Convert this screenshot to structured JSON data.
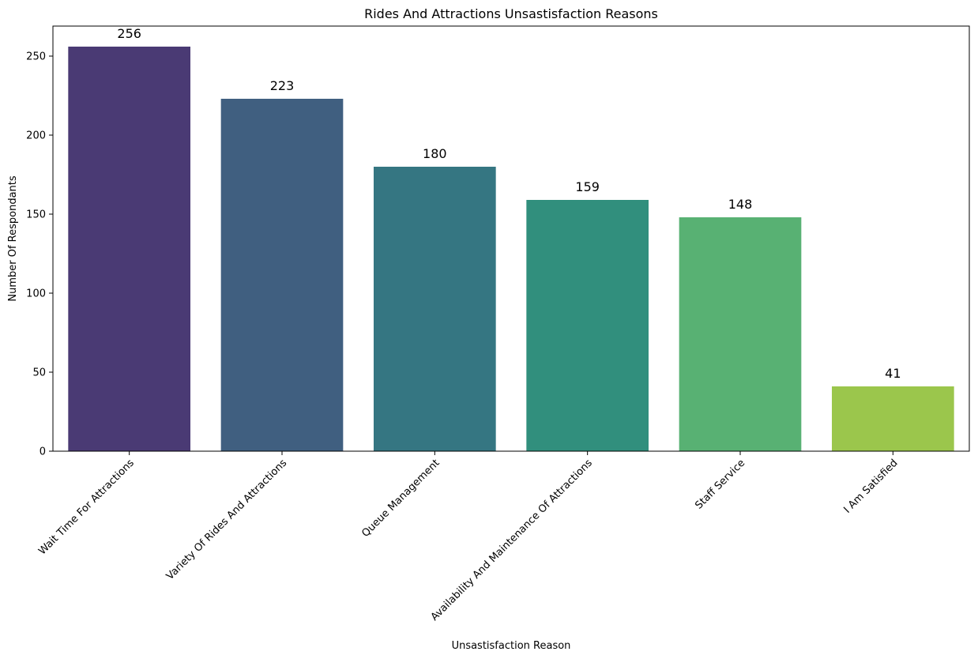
{
  "chart_data": {
    "type": "bar",
    "title": "Rides And Attractions Unsastisfaction Reasons",
    "xlabel": "Unsastisfaction Reason",
    "ylabel": "Number Of Respondants",
    "categories": [
      "Wait Time For Attractions",
      "Variety Of Rides And Attractions",
      "Queue Management",
      "Availability And Maintenance Of Attractions",
      "Staff Service",
      "I Am Satisfied"
    ],
    "values": [
      256,
      223,
      180,
      159,
      148,
      41
    ],
    "colors": [
      "#4a3a74",
      "#405f80",
      "#357682",
      "#318f7d",
      "#58b173",
      "#9bc64c"
    ],
    "ylim": [
      0,
      269
    ],
    "yticks": [
      0,
      50,
      100,
      150,
      200,
      250
    ],
    "grid": false,
    "legend": "none"
  }
}
